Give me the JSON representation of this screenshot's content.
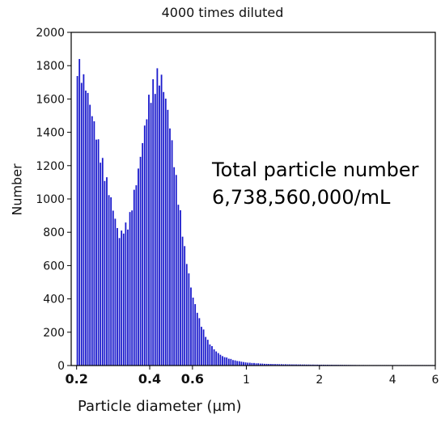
{
  "chart_data": {
    "type": "bar",
    "title": "4000 times diluted",
    "xlabel": "Particle diameter (µm)",
    "ylabel": "Number",
    "xscale": "log",
    "xlim": [
      0.19,
      6
    ],
    "ylim": [
      0,
      2000
    ],
    "color": "#1a1acc",
    "x_ticks": [
      "0.2",
      "0.4",
      "0.6",
      "1",
      "2",
      "4",
      "6"
    ],
    "y_ticks": [
      "0",
      "200",
      "400",
      "600",
      "800",
      "1000",
      "1200",
      "1400",
      "1600",
      "1800",
      "2000"
    ],
    "annotations": [
      "Total particle number",
      "6,738,560,000/mL"
    ],
    "x": [
      0.2,
      0.22,
      0.25,
      0.28,
      0.3,
      0.33,
      0.36,
      0.4,
      0.43,
      0.45,
      0.48,
      0.52,
      0.56,
      0.6,
      0.65,
      0.7,
      0.75,
      0.8,
      0.9,
      1.0,
      1.2,
      1.5,
      2.0,
      2.5,
      3.0,
      4.0,
      6.0
    ],
    "values": [
      1830,
      1640,
      1270,
      960,
      760,
      860,
      1150,
      1590,
      1720,
      1690,
      1480,
      1060,
      680,
      420,
      250,
      140,
      85,
      55,
      30,
      18,
      10,
      7,
      5,
      4,
      3,
      2,
      1
    ]
  }
}
